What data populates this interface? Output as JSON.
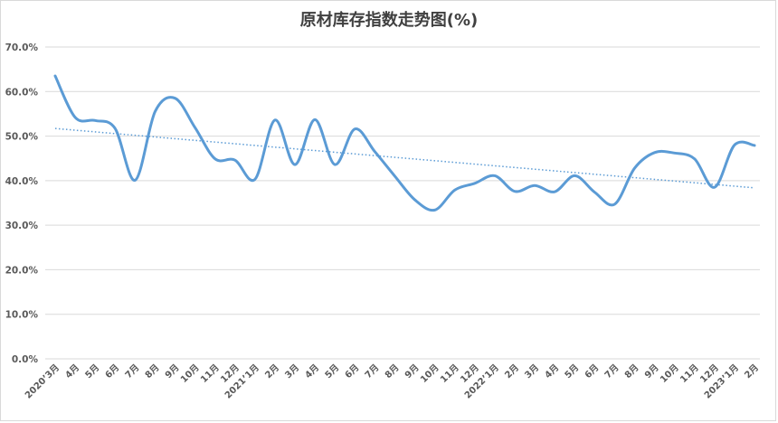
{
  "chart_data": {
    "type": "line",
    "title": "原材库存指数走势图(%)",
    "xlabel": "",
    "ylabel": "",
    "ylim": [
      0,
      70
    ],
    "yticks": [
      "0.0%",
      "10.0%",
      "20.0%",
      "30.0%",
      "40.0%",
      "50.0%",
      "60.0%",
      "70.0%"
    ],
    "grid": true,
    "legend": "none",
    "categories": [
      "2020’3月",
      "4月",
      "5月",
      "6月",
      "7月",
      "8月",
      "9月",
      "10月",
      "11月",
      "12月",
      "2021’1月",
      "2月",
      "3月",
      "4月",
      "5月",
      "6月",
      "7月",
      "8月",
      "9月",
      "10月",
      "11月",
      "12月",
      "2022’1月",
      "2月",
      "3月",
      "4月",
      "5月",
      "6月",
      "7月",
      "8月",
      "9月",
      "10月",
      "11月",
      "12月",
      "2023’1月",
      "2月"
    ],
    "series": [
      {
        "values": [
          63.5,
          54.2,
          53.5,
          51.7,
          40.1,
          55.5,
          58.5,
          51.9,
          44.9,
          44.6,
          40.3,
          53.6,
          43.6,
          53.7,
          43.6,
          51.6,
          46.5,
          41.0,
          35.7,
          33.4,
          37.9,
          39.4,
          41.1,
          37.6,
          38.9,
          37.5,
          41.1,
          37.4,
          34.7,
          42.8,
          46.3,
          46.2,
          44.9,
          38.5,
          48.0,
          47.9
        ],
        "color": "#5b9bd5"
      }
    ],
    "trendline": {
      "type": "linear",
      "style": "dotted",
      "color": "#5b9bd5"
    }
  }
}
